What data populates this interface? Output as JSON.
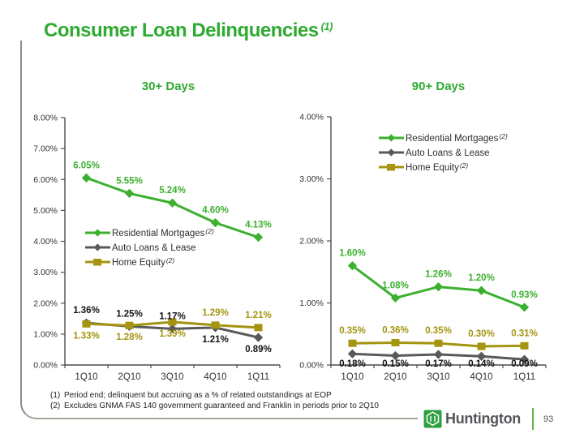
{
  "slide": {
    "title": "Consumer Loan Delinquencies",
    "title_note": "(1)",
    "footnotes": [
      {
        "num": "(1)",
        "text": "Period end; delinquent but accruing as a % of related outstandings at EOP"
      },
      {
        "num": "(2)",
        "text": "Excludes GNMA FAS 140 government guaranteed and Franklin in periods prior to 2Q10"
      }
    ],
    "footer": {
      "logo_text": "Huntington",
      "page_number": "93"
    }
  },
  "colors": {
    "green": "#3cb02f",
    "title_green": "#2faa32",
    "gray": "#595959",
    "olive": "#a49410",
    "label_dark": "#141414",
    "axis": "#4d4d4d",
    "tick_text": "#333333",
    "logo_green": "#2f9e3f"
  },
  "chart_data": [
    {
      "type": "line",
      "title": "30+ Days",
      "categories": [
        "1Q10",
        "2Q10",
        "3Q10",
        "4Q10",
        "1Q11"
      ],
      "ylim": [
        0,
        8
      ],
      "ytick_step": 1,
      "ytick_format": "0.00%",
      "grid": false,
      "legend_position": "inside-middle-left",
      "series": [
        {
          "name": "Residential Mortgages",
          "note": "(2)",
          "color_key": "green",
          "marker": "diamond",
          "values": [
            6.05,
            5.55,
            5.24,
            4.6,
            4.13
          ],
          "label_color_key": "green",
          "label_pos": [
            "above",
            "above",
            "above",
            "above",
            "above"
          ]
        },
        {
          "name": "Auto Loans & Lease",
          "note": "",
          "color_key": "gray",
          "marker": "diamond",
          "values": [
            1.36,
            1.25,
            1.17,
            1.21,
            0.89
          ],
          "label_color_key": "label_dark",
          "label_pos": [
            "above",
            "above",
            "above",
            "below",
            "below"
          ]
        },
        {
          "name": "Home Equity",
          "note": "(2)",
          "color_key": "olive",
          "marker": "square",
          "values": [
            1.33,
            1.28,
            1.39,
            1.29,
            1.21
          ],
          "label_color_key": "olive",
          "label_pos": [
            "below",
            "below",
            "below",
            "above",
            "above"
          ]
        }
      ]
    },
    {
      "type": "line",
      "title": "90+ Days",
      "categories": [
        "1Q10",
        "2Q10",
        "3Q10",
        "4Q10",
        "1Q11"
      ],
      "ylim": [
        0,
        4
      ],
      "ytick_step": 1,
      "ytick_format": "0.00%",
      "grid": false,
      "legend_position": "inside-top-center",
      "series": [
        {
          "name": "Residential Mortgages",
          "note": "(2)",
          "color_key": "green",
          "marker": "diamond",
          "values": [
            1.6,
            1.08,
            1.26,
            1.2,
            0.93
          ],
          "label_color_key": "green",
          "label_pos": [
            "above",
            "above",
            "above",
            "above",
            "above"
          ]
        },
        {
          "name": "Auto Loans & Lease",
          "note": "",
          "color_key": "gray",
          "marker": "diamond",
          "values": [
            0.18,
            0.15,
            0.17,
            0.14,
            0.09
          ],
          "label_color_key": "label_dark",
          "label_pos": [
            "below",
            "below",
            "below",
            "below",
            "below"
          ]
        },
        {
          "name": "Home Equity",
          "note": "(2)",
          "color_key": "olive",
          "marker": "square",
          "values": [
            0.35,
            0.36,
            0.35,
            0.3,
            0.31
          ],
          "label_color_key": "olive",
          "label_pos": [
            "above",
            "above",
            "above",
            "above",
            "above"
          ]
        }
      ]
    }
  ]
}
